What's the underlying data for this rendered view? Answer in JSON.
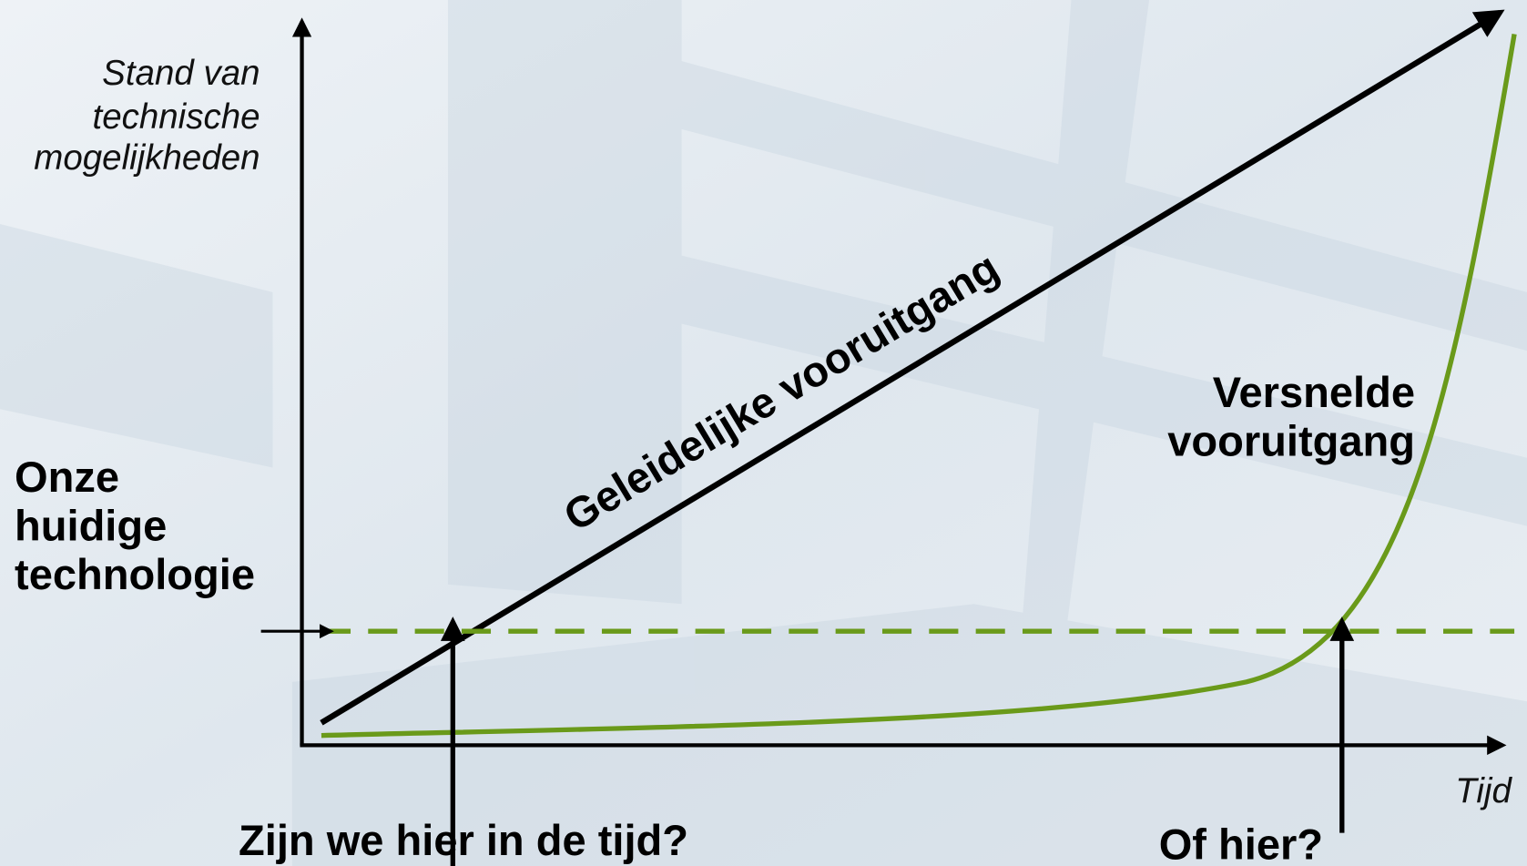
{
  "y_axis_label": [
    "Stand van",
    "technische",
    "mogelijkheden"
  ],
  "x_axis_label": "Tijd",
  "current_technology": [
    "Onze",
    "huidige",
    "technologie"
  ],
  "gradual_progress": "Geleidelijke vooruitgang",
  "accelerated_progress": [
    "Versnelde",
    "vooruitgang"
  ],
  "question_gradual": "Zijn we hier in de tijd?",
  "question_accelerated": "Of hier?"
}
